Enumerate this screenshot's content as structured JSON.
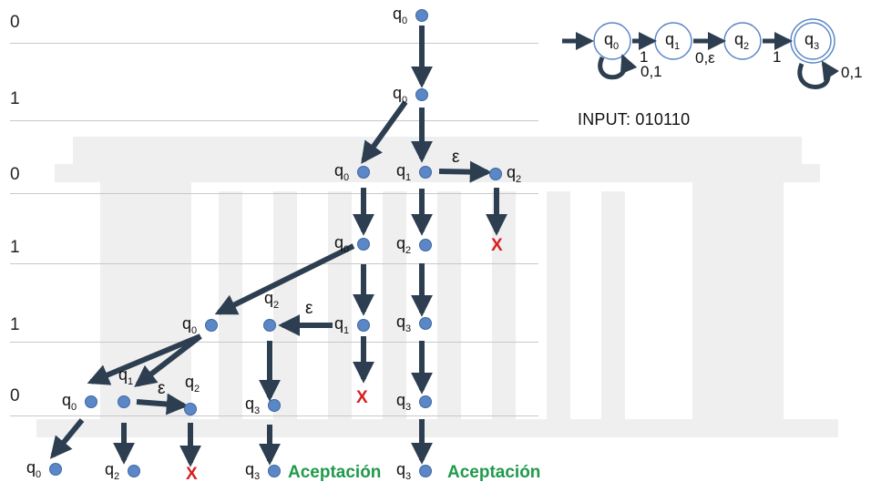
{
  "input_label": "INPUT: 010110",
  "rows": [
    "0",
    "1",
    "0",
    "1",
    "1",
    "0"
  ],
  "colors": {
    "node_fill": "#5b87c6",
    "arrow": "#2c3e50",
    "reject": "#d62020",
    "accept": "#1f9a4a"
  },
  "automaton": {
    "states": [
      {
        "id": "q0",
        "base": "q",
        "sub": "0",
        "accepting": false
      },
      {
        "id": "q1",
        "base": "q",
        "sub": "1",
        "accepting": false
      },
      {
        "id": "q2",
        "base": "q",
        "sub": "2",
        "accepting": false
      },
      {
        "id": "q3",
        "base": "q",
        "sub": "3",
        "accepting": true
      }
    ],
    "transitions": [
      {
        "from": "q0",
        "to": "q0",
        "label": "0,1"
      },
      {
        "from": "q0",
        "to": "q1",
        "label": "1"
      },
      {
        "from": "q1",
        "to": "q2",
        "label": "0,ε"
      },
      {
        "from": "q2",
        "to": "q3",
        "label": "1"
      },
      {
        "from": "q3",
        "to": "q3",
        "label": "0,1"
      }
    ]
  },
  "tree_nodes": [
    {
      "id": "n1",
      "state": "0"
    },
    {
      "id": "n2",
      "state": "0"
    },
    {
      "id": "n3",
      "state": "0"
    },
    {
      "id": "n4",
      "state": "1"
    },
    {
      "id": "n5",
      "state": "2"
    },
    {
      "id": "n6",
      "state": "0"
    },
    {
      "id": "n7",
      "state": "2"
    },
    {
      "id": "n8",
      "state": "1"
    },
    {
      "id": "n9",
      "state": "3"
    },
    {
      "id": "n10",
      "state": "0"
    },
    {
      "id": "n11",
      "state": "2"
    },
    {
      "id": "n12",
      "state": "0"
    },
    {
      "id": "n13",
      "state": "1"
    },
    {
      "id": "n14",
      "state": "2"
    },
    {
      "id": "n15",
      "state": "3"
    },
    {
      "id": "n16",
      "state": "3"
    },
    {
      "id": "n17",
      "state": "0"
    },
    {
      "id": "n18",
      "state": "2"
    },
    {
      "id": "n19",
      "state": "3"
    },
    {
      "id": "n20",
      "state": "3"
    }
  ],
  "reject_label": "X",
  "epsilon_label": "ε",
  "accept_label": "Aceptación"
}
